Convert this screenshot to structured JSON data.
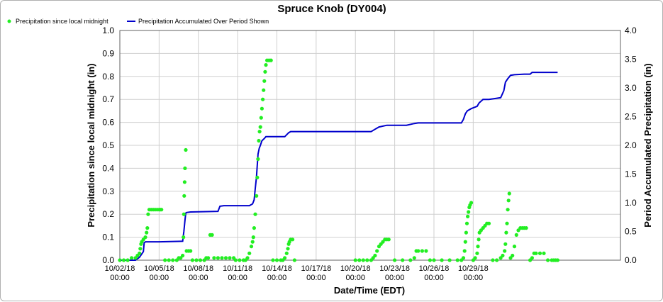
{
  "chart_data": {
    "type": "line",
    "title": "Spruce Knob (DY004)",
    "xlabel": "Date/Time (EDT)",
    "ylabel": "Precipitation since local midnight (in)",
    "y2label": "Period Accumulated Precipitation (in)",
    "ylim": [
      0,
      1.0
    ],
    "y2lim": [
      0,
      4.0
    ],
    "yticks": [
      "0.0",
      "0.1",
      "0.2",
      "0.3",
      "0.4",
      "0.5",
      "0.6",
      "0.7",
      "0.8",
      "0.9",
      "1.0"
    ],
    "y2ticks": [
      "0.0",
      "0.5",
      "1.0",
      "1.5",
      "2.0",
      "2.5",
      "3.0",
      "3.5",
      "4.0"
    ],
    "xlim_days": [
      0,
      12.75
    ],
    "xticks": [
      {
        "day": 0,
        "date": "10/02/18",
        "time": "00:00"
      },
      {
        "day": 1,
        "date": "10/05/18",
        "time": "00:00"
      },
      {
        "day": 2,
        "date": "10/08/18",
        "time": "00:00"
      },
      {
        "day": 3,
        "date": "10/11/18",
        "time": "00:00"
      },
      {
        "day": 4,
        "date": "10/14/18",
        "time": "00:00"
      },
      {
        "day": 5,
        "date": "10/17/18",
        "time": "00:00"
      },
      {
        "day": 6,
        "date": "10/20/18",
        "time": "00:00"
      },
      {
        "day": 7,
        "date": "10/23/18",
        "time": "00:00"
      },
      {
        "day": 8,
        "date": "10/26/18",
        "time": "00:00"
      },
      {
        "day": 9,
        "date": "10/29/18",
        "time": "00:00"
      }
    ],
    "legend_position": "top-left",
    "grid": true,
    "series": [
      {
        "name": "Precipitation since local midnight",
        "axis": "left",
        "style": "points",
        "color": "#22ee22",
        "points": [
          [
            0.0,
            0.0
          ],
          [
            0.1,
            0.0
          ],
          [
            0.2,
            0.0
          ],
          [
            0.3,
            0.01
          ],
          [
            0.4,
            0.01
          ],
          [
            0.45,
            0.02
          ],
          [
            0.5,
            0.03
          ],
          [
            0.52,
            0.05
          ],
          [
            0.54,
            0.07
          ],
          [
            0.56,
            0.08
          ],
          [
            0.6,
            0.09
          ],
          [
            0.65,
            0.1
          ],
          [
            0.68,
            0.12
          ],
          [
            0.7,
            0.14
          ],
          [
            0.72,
            0.2
          ],
          [
            0.75,
            0.22
          ],
          [
            0.8,
            0.22
          ],
          [
            0.85,
            0.22
          ],
          [
            0.9,
            0.22
          ],
          [
            0.95,
            0.22
          ],
          [
            1.0,
            0.22
          ],
          [
            1.03,
            0.22
          ],
          [
            1.06,
            0.22
          ],
          [
            1.15,
            0.0
          ],
          [
            1.25,
            0.0
          ],
          [
            1.35,
            0.0
          ],
          [
            1.45,
            0.0
          ],
          [
            1.5,
            0.01
          ],
          [
            1.55,
            0.01
          ],
          [
            1.6,
            0.02
          ],
          [
            1.62,
            0.1
          ],
          [
            1.63,
            0.2
          ],
          [
            1.64,
            0.28
          ],
          [
            1.65,
            0.34
          ],
          [
            1.66,
            0.4
          ],
          [
            1.68,
            0.48
          ],
          [
            1.7,
            0.04
          ],
          [
            1.75,
            0.04
          ],
          [
            1.8,
            0.04
          ],
          [
            1.85,
            0.0
          ],
          [
            1.95,
            0.0
          ],
          [
            2.05,
            0.0
          ],
          [
            2.15,
            0.0
          ],
          [
            2.2,
            0.01
          ],
          [
            2.25,
            0.01
          ],
          [
            2.3,
            0.11
          ],
          [
            2.35,
            0.11
          ],
          [
            2.4,
            0.01
          ],
          [
            2.5,
            0.01
          ],
          [
            2.6,
            0.01
          ],
          [
            2.7,
            0.01
          ],
          [
            2.8,
            0.01
          ],
          [
            2.9,
            0.01
          ],
          [
            2.95,
            0.0
          ],
          [
            3.05,
            0.0
          ],
          [
            3.15,
            0.0
          ],
          [
            3.2,
            0.0
          ],
          [
            3.25,
            0.01
          ],
          [
            3.3,
            0.03
          ],
          [
            3.35,
            0.06
          ],
          [
            3.38,
            0.08
          ],
          [
            3.4,
            0.1
          ],
          [
            3.42,
            0.14
          ],
          [
            3.45,
            0.2
          ],
          [
            3.48,
            0.28
          ],
          [
            3.5,
            0.36
          ],
          [
            3.52,
            0.44
          ],
          [
            3.54,
            0.52
          ],
          [
            3.56,
            0.56
          ],
          [
            3.58,
            0.58
          ],
          [
            3.6,
            0.62
          ],
          [
            3.62,
            0.66
          ],
          [
            3.64,
            0.7
          ],
          [
            3.66,
            0.74
          ],
          [
            3.68,
            0.78
          ],
          [
            3.7,
            0.82
          ],
          [
            3.72,
            0.85
          ],
          [
            3.75,
            0.87
          ],
          [
            3.8,
            0.87
          ],
          [
            3.85,
            0.87
          ],
          [
            3.9,
            0.0
          ],
          [
            4.0,
            0.0
          ],
          [
            4.1,
            0.0
          ],
          [
            4.15,
            0.0
          ],
          [
            4.2,
            0.01
          ],
          [
            4.25,
            0.03
          ],
          [
            4.28,
            0.05
          ],
          [
            4.3,
            0.07
          ],
          [
            4.32,
            0.08
          ],
          [
            4.35,
            0.09
          ],
          [
            4.4,
            0.09
          ],
          [
            4.45,
            0.0
          ],
          [
            6.0,
            0.0
          ],
          [
            6.1,
            0.0
          ],
          [
            6.2,
            0.0
          ],
          [
            6.3,
            0.0
          ],
          [
            6.4,
            0.0
          ],
          [
            6.45,
            0.01
          ],
          [
            6.5,
            0.02
          ],
          [
            6.55,
            0.04
          ],
          [
            6.6,
            0.06
          ],
          [
            6.65,
            0.07
          ],
          [
            6.7,
            0.08
          ],
          [
            6.75,
            0.09
          ],
          [
            6.8,
            0.09
          ],
          [
            6.85,
            0.09
          ],
          [
            7.0,
            0.0
          ],
          [
            7.2,
            0.0
          ],
          [
            7.4,
            0.0
          ],
          [
            7.5,
            0.01
          ],
          [
            7.55,
            0.04
          ],
          [
            7.6,
            0.04
          ],
          [
            7.7,
            0.04
          ],
          [
            7.8,
            0.04
          ],
          [
            7.9,
            0.0
          ],
          [
            8.0,
            0.0
          ],
          [
            8.2,
            0.0
          ],
          [
            8.4,
            0.0
          ],
          [
            8.6,
            0.0
          ],
          [
            8.7,
            0.0
          ],
          [
            8.75,
            0.01
          ],
          [
            8.78,
            0.04
          ],
          [
            8.8,
            0.08
          ],
          [
            8.82,
            0.12
          ],
          [
            8.84,
            0.16
          ],
          [
            8.86,
            0.19
          ],
          [
            8.88,
            0.21
          ],
          [
            8.9,
            0.23
          ],
          [
            8.92,
            0.24
          ],
          [
            8.95,
            0.25
          ],
          [
            9.0,
            0.0
          ],
          [
            9.05,
            0.01
          ],
          [
            9.1,
            0.03
          ],
          [
            9.12,
            0.06
          ],
          [
            9.14,
            0.09
          ],
          [
            9.16,
            0.12
          ],
          [
            9.2,
            0.13
          ],
          [
            9.25,
            0.14
          ],
          [
            9.3,
            0.15
          ],
          [
            9.35,
            0.16
          ],
          [
            9.4,
            0.16
          ],
          [
            9.5,
            0.0
          ],
          [
            9.6,
            0.0
          ],
          [
            9.7,
            0.01
          ],
          [
            9.75,
            0.02
          ],
          [
            9.8,
            0.04
          ],
          [
            9.82,
            0.07
          ],
          [
            9.84,
            0.12
          ],
          [
            9.86,
            0.16
          ],
          [
            9.88,
            0.22
          ],
          [
            9.9,
            0.26
          ],
          [
            9.92,
            0.29
          ],
          [
            9.95,
            0.01
          ],
          [
            10.0,
            0.02
          ],
          [
            10.05,
            0.06
          ],
          [
            10.1,
            0.11
          ],
          [
            10.15,
            0.13
          ],
          [
            10.2,
            0.14
          ],
          [
            10.25,
            0.14
          ],
          [
            10.3,
            0.14
          ],
          [
            10.35,
            0.14
          ],
          [
            10.45,
            0.0
          ],
          [
            10.5,
            0.01
          ],
          [
            10.55,
            0.03
          ],
          [
            10.6,
            0.03
          ],
          [
            10.7,
            0.03
          ],
          [
            10.8,
            0.03
          ],
          [
            10.9,
            0.0
          ],
          [
            11.0,
            0.0
          ],
          [
            11.05,
            0.0
          ],
          [
            11.1,
            0.0
          ],
          [
            11.15,
            0.0
          ]
        ]
      },
      {
        "name": "Precipitation Accumulated Over Period Shown",
        "axis": "right",
        "style": "step-line",
        "color": "#0000cc",
        "points": [
          [
            0.0,
            0.0
          ],
          [
            0.4,
            0.0
          ],
          [
            0.5,
            0.05
          ],
          [
            0.6,
            0.15
          ],
          [
            0.62,
            0.3
          ],
          [
            0.65,
            0.32
          ],
          [
            0.8,
            0.32
          ],
          [
            1.0,
            0.32
          ],
          [
            1.6,
            0.33
          ],
          [
            1.63,
            0.5
          ],
          [
            1.66,
            0.7
          ],
          [
            1.68,
            0.82
          ],
          [
            1.7,
            0.83
          ],
          [
            1.8,
            0.84
          ],
          [
            2.5,
            0.85
          ],
          [
            2.55,
            0.94
          ],
          [
            2.65,
            0.95
          ],
          [
            3.0,
            0.95
          ],
          [
            3.3,
            0.95
          ],
          [
            3.38,
            0.98
          ],
          [
            3.42,
            1.05
          ],
          [
            3.45,
            1.25
          ],
          [
            3.48,
            1.45
          ],
          [
            3.5,
            1.65
          ],
          [
            3.52,
            1.85
          ],
          [
            3.55,
            1.95
          ],
          [
            3.58,
            2.0
          ],
          [
            3.62,
            2.08
          ],
          [
            3.68,
            2.12
          ],
          [
            3.72,
            2.15
          ],
          [
            3.9,
            2.15
          ],
          [
            4.2,
            2.15
          ],
          [
            4.3,
            2.22
          ],
          [
            4.35,
            2.24
          ],
          [
            4.5,
            2.24
          ],
          [
            5.0,
            2.24
          ],
          [
            6.0,
            2.24
          ],
          [
            6.4,
            2.24
          ],
          [
            6.5,
            2.28
          ],
          [
            6.6,
            2.32
          ],
          [
            6.8,
            2.35
          ],
          [
            7.3,
            2.35
          ],
          [
            7.5,
            2.38
          ],
          [
            7.6,
            2.39
          ],
          [
            8.0,
            2.39
          ],
          [
            8.4,
            2.39
          ],
          [
            8.7,
            2.39
          ],
          [
            8.75,
            2.45
          ],
          [
            8.8,
            2.55
          ],
          [
            8.85,
            2.6
          ],
          [
            8.95,
            2.64
          ],
          [
            9.1,
            2.68
          ],
          [
            9.15,
            2.74
          ],
          [
            9.25,
            2.8
          ],
          [
            9.4,
            2.8
          ],
          [
            9.6,
            2.82
          ],
          [
            9.7,
            2.83
          ],
          [
            9.78,
            2.95
          ],
          [
            9.82,
            3.1
          ],
          [
            9.88,
            3.16
          ],
          [
            9.95,
            3.22
          ],
          [
            10.05,
            3.23
          ],
          [
            10.3,
            3.24
          ],
          [
            10.45,
            3.24
          ],
          [
            10.5,
            3.27
          ],
          [
            10.6,
            3.27
          ],
          [
            11.0,
            3.27
          ],
          [
            11.15,
            3.27
          ]
        ]
      }
    ]
  }
}
